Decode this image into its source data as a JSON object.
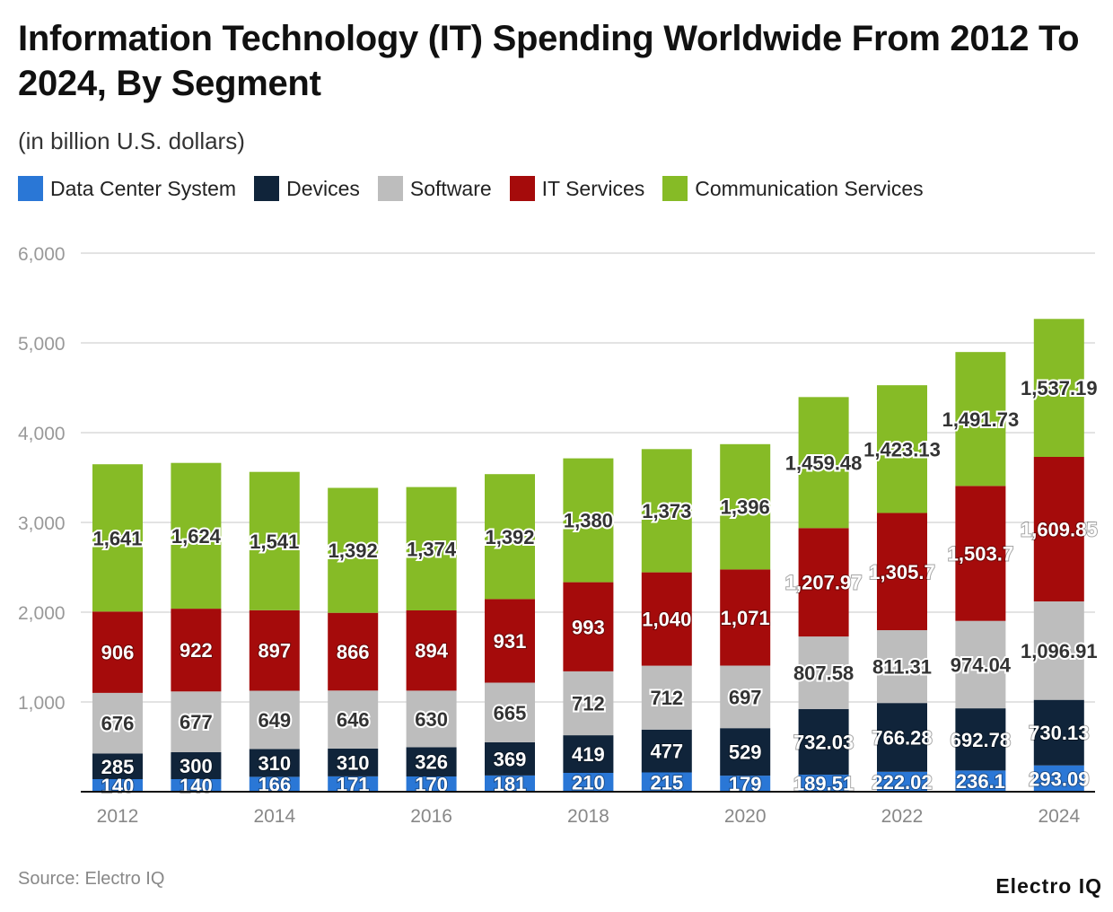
{
  "chart_data": {
    "type": "bar",
    "stacked": true,
    "title": "Information Technology (IT) Spending Worldwide From 2012 To 2024, By Segment",
    "subtitle": "(in billion U.S. dollars)",
    "categories": [
      "2012",
      "2013",
      "2014",
      "2015",
      "2016",
      "2017",
      "2018",
      "2019",
      "2020",
      "2021",
      "2022",
      "2023",
      "2024"
    ],
    "x_tick_labels": [
      "2012",
      "",
      "2014",
      "",
      "2016",
      "",
      "2018",
      "",
      "2020",
      "",
      "2022",
      "",
      "2024"
    ],
    "ylim": [
      0,
      6000
    ],
    "y_ticks": [
      "0",
      "1,000",
      "2,000",
      "3,000",
      "4,000",
      "5,000",
      "6,000"
    ],
    "grid": true,
    "legend_position": "top-left",
    "series": [
      {
        "name": "Data Center System",
        "color": "#2a77d6",
        "values": [
          140,
          140,
          166,
          171,
          170,
          181,
          210,
          215,
          179,
          189.51,
          222.02,
          236.1,
          293.09
        ],
        "labels": [
          "140",
          "140",
          "166",
          "171",
          "170",
          "181",
          "210",
          "215",
          "179",
          "189.51",
          "222.02",
          "236.1",
          "293.09"
        ]
      },
      {
        "name": "Devices",
        "color": "#10243a",
        "values": [
          285,
          300,
          310,
          310,
          326,
          369,
          419,
          477,
          529,
          732.03,
          766.28,
          692.78,
          730.13
        ],
        "labels": [
          "285",
          "300",
          "310",
          "310",
          "326",
          "369",
          "419",
          "477",
          "529",
          "732.03",
          "766.28",
          "692.78",
          "730.13"
        ]
      },
      {
        "name": "Software",
        "color": "#bdbdbd",
        "values": [
          676,
          677,
          649,
          646,
          630,
          665,
          712,
          712,
          697,
          807.58,
          811.31,
          974.04,
          1096.91
        ],
        "labels": [
          "676",
          "677",
          "649",
          "646",
          "630",
          "665",
          "712",
          "712",
          "697",
          "807.58",
          "811.31",
          "974.04",
          "1,096.91"
        ]
      },
      {
        "name": "IT Services",
        "color": "#a50b0b",
        "values": [
          906,
          922,
          897,
          866,
          894,
          931,
          993,
          1040,
          1071,
          1207.97,
          1305.7,
          1503.7,
          1609.85
        ],
        "labels": [
          "906",
          "922",
          "897",
          "866",
          "894",
          "931",
          "993",
          "1,040",
          "1,071",
          "1,207.97",
          "1,305.7",
          "1,503.7",
          "1,609.85"
        ]
      },
      {
        "name": "Communication Services",
        "color": "#86bb26",
        "values": [
          1641,
          1624,
          1541,
          1392,
          1374,
          1392,
          1380,
          1373,
          1396,
          1459.48,
          1423.13,
          1491.73,
          1537.19
        ],
        "labels": [
          "1,641",
          "1,624",
          "1,541",
          "1,392",
          "1,374",
          "1,392",
          "1,380",
          "1,373",
          "1,396",
          "1,459.48",
          "1,423.13",
          "1,491.73",
          "1,537.19"
        ]
      }
    ]
  },
  "footer": {
    "source": "Source: Electro IQ",
    "logo": "Electro IQ"
  }
}
